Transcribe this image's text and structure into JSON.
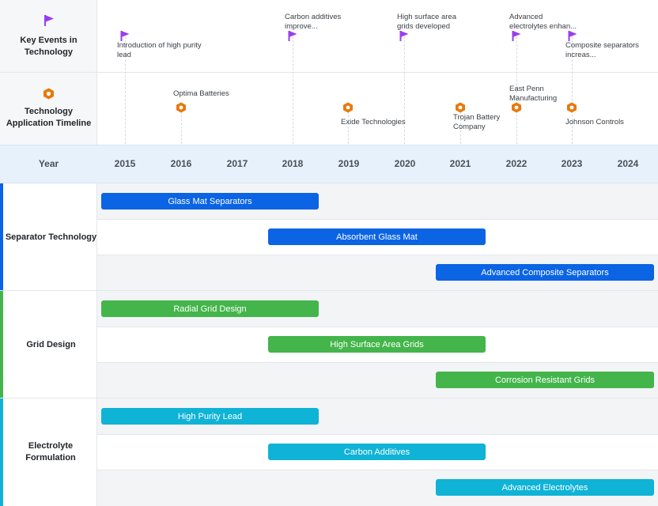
{
  "header_rows": {
    "key_events_label": "Key Events in Technology",
    "application_label": "Technology Application Timeline",
    "year_label": "Year"
  },
  "years": [
    "2015",
    "2016",
    "2017",
    "2018",
    "2019",
    "2020",
    "2021",
    "2022",
    "2023",
    "2024"
  ],
  "key_events": [
    {
      "label": "Introduction of high purity lead",
      "icon": "flag-icon"
    },
    {
      "label": "Carbon additives improve...",
      "icon": "flag-icon"
    },
    {
      "label": "High surface area grids developed",
      "icon": "flag-icon"
    },
    {
      "label": "Advanced electrolytes enhan...",
      "icon": "flag-icon"
    },
    {
      "label": "Composite separators increas...",
      "icon": "flag-icon"
    }
  ],
  "applications": [
    {
      "label": "Optima Batteries",
      "icon": "hexagon-nut-icon"
    },
    {
      "label": "Exide Technologies",
      "icon": "hexagon-nut-icon"
    },
    {
      "label": "Trojan Battery Company",
      "icon": "hexagon-nut-icon"
    },
    {
      "label": "East Penn Manufacturing",
      "icon": "hexagon-nut-icon"
    },
    {
      "label": "Johnson Controls",
      "icon": "hexagon-nut-icon"
    }
  ],
  "groups": [
    {
      "name": "Separator Technology",
      "color": "#0a64e4",
      "bars": [
        {
          "label": "Glass Mat Separators",
          "start": 2015,
          "end": 2018
        },
        {
          "label": "Absorbent Glass Mat",
          "start": 2018,
          "end": 2021
        },
        {
          "label": "Advanced Composite Separators",
          "start": 2021,
          "end": 2024
        }
      ]
    },
    {
      "name": "Grid Design",
      "color": "#43b54b",
      "bars": [
        {
          "label": "Radial Grid Design",
          "start": 2015,
          "end": 2018
        },
        {
          "label": "High Surface Area Grids",
          "start": 2018,
          "end": 2021
        },
        {
          "label": "Corrosion Resistant Grids",
          "start": 2021,
          "end": 2024
        }
      ]
    },
    {
      "name": "Electrolyte Formulation",
      "color": "#0fb3d6",
      "bars": [
        {
          "label": "High Purity Lead",
          "start": 2015,
          "end": 2018
        },
        {
          "label": "Carbon Additives",
          "start": 2018,
          "end": 2021
        },
        {
          "label": "Advanced Electrolytes",
          "start": 2021,
          "end": 2024
        }
      ]
    }
  ],
  "colors": {
    "flag": "#9a3df0",
    "hex": "#e8790c"
  }
}
